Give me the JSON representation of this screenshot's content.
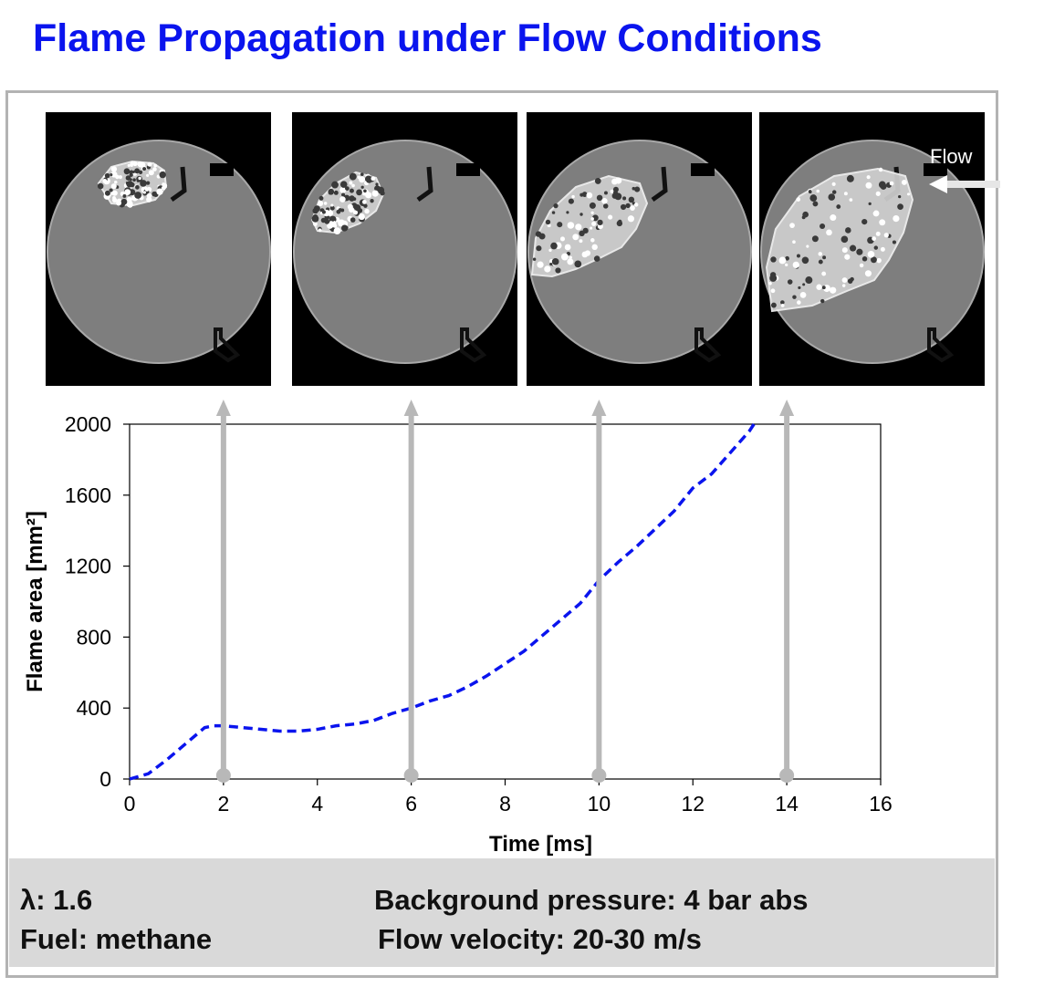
{
  "title": "Flame Propagation under Flow Conditions",
  "flow_label": "Flow",
  "info": {
    "lambda": "λ: 1.6",
    "fuel": "Fuel: methane",
    "pressure": "Background pressure: 4 bar abs",
    "velocity": "Flow velocity: 20-30 m/s"
  },
  "colors": {
    "title": "#0a14ee",
    "series": "#0a14ee",
    "marker_arrows": "#b8b8b8",
    "info_box": "#d9d9d9"
  },
  "chart_data": {
    "type": "line",
    "xlabel": "Time [ms]",
    "ylabel": "Flame area [mm²]",
    "xlim": [
      0,
      16
    ],
    "ylim": [
      0,
      2000
    ],
    "xticks": [
      0,
      2,
      4,
      6,
      8,
      10,
      12,
      14,
      16
    ],
    "yticks": [
      0,
      400,
      800,
      1200,
      1600,
      2000
    ],
    "grid": false,
    "legend": "none",
    "series": [
      {
        "style": "dashed",
        "x": [
          0,
          0.4,
          0.8,
          1.2,
          1.6,
          1.8,
          2.0,
          2.4,
          2.8,
          3.2,
          3.6,
          4.0,
          4.4,
          4.8,
          5.2,
          5.6,
          6.0,
          6.4,
          6.8,
          7.2,
          7.6,
          8.0,
          8.4,
          8.8,
          9.2,
          9.6,
          10.0,
          10.4,
          10.8,
          11.2,
          11.6,
          12.0,
          12.4,
          12.8,
          13.2,
          13.3
        ],
        "y": [
          0,
          30,
          110,
          200,
          290,
          300,
          300,
          290,
          280,
          270,
          270,
          280,
          300,
          310,
          330,
          370,
          400,
          440,
          470,
          520,
          580,
          650,
          720,
          810,
          900,
          990,
          1120,
          1220,
          1310,
          1410,
          1510,
          1640,
          1720,
          1840,
          1960,
          2000
        ]
      }
    ],
    "markers": [
      {
        "x": 2,
        "frame": 1
      },
      {
        "x": 6,
        "frame": 2
      },
      {
        "x": 10,
        "frame": 3
      },
      {
        "x": 14,
        "frame": 4
      }
    ]
  }
}
